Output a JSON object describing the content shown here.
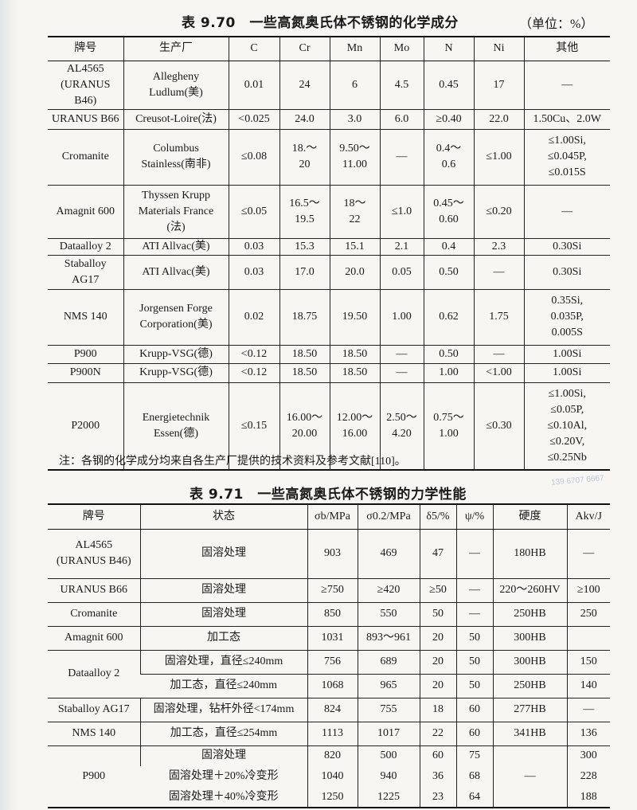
{
  "table1": {
    "title": "表 9.70　一些高氮奥氏体不锈钢的化学成分",
    "unit": "（单位：%）",
    "columns": [
      "牌号",
      "生产厂",
      "C",
      "Cr",
      "Mn",
      "Mo",
      "N",
      "Ni",
      "其他"
    ],
    "rows": [
      [
        "AL4565\n(URANUS B46)",
        "Allegheny\nLudlum(美)",
        "0.01",
        "24",
        "6",
        "4.5",
        "0.45",
        "17",
        "—"
      ],
      [
        "URANUS B66",
        "Creusot-Loire(法)",
        "<0.025",
        "24.0",
        "3.0",
        "6.0",
        "≥0.40",
        "22.0",
        "1.50Cu、2.0W"
      ],
      [
        "Cromanite",
        "Columbus\nStainless(南非)",
        "≤0.08",
        "18.～\n20",
        "9.50～\n11.00",
        "—",
        "0.4～\n0.6",
        "≤1.00",
        "≤1.00Si,\n≤0.045P,\n≤0.015S"
      ],
      [
        "Amagnit 600",
        "Thyssen Krupp\nMaterials France\n(法)",
        "≤0.05",
        "16.5～\n19.5",
        "18～\n22",
        "≤1.0",
        "0.45～\n0.60",
        "≤0.20",
        "—"
      ],
      [
        "Dataalloy 2",
        "ATI Allvac(美)",
        "0.03",
        "15.3",
        "15.1",
        "2.1",
        "0.4",
        "2.3",
        "0.30Si"
      ],
      [
        "Staballoy\nAG17",
        "ATI Allvac(美)",
        "0.03",
        "17.0",
        "20.0",
        "0.05",
        "0.50",
        "—",
        "0.30Si"
      ],
      [
        "NMS 140",
        "Jorgensen Forge\nCorporation(美)",
        "0.02",
        "18.75",
        "19.50",
        "1.00",
        "0.62",
        "1.75",
        "0.35Si,\n0.035P,\n0.005S"
      ],
      [
        "P900",
        "Krupp-VSG(德)",
        "<0.12",
        "18.50",
        "18.50",
        "—",
        "0.50",
        "—",
        "1.00Si"
      ],
      [
        "P900N",
        "Krupp-VSG(德)",
        "<0.12",
        "18.50",
        "18.50",
        "—",
        "1.00",
        "<1.00",
        "1.00Si"
      ],
      [
        "P2000",
        "Energietechnik\nEssen(德)",
        "≤0.15",
        "16.00～\n20.00",
        "12.00～\n16.00",
        "2.50～\n4.20",
        "0.75～\n1.00",
        "≤0.30",
        "≤1.00Si,\n≤0.05P,\n≤0.10Al,\n≤0.20V,\n≤0.25Nb"
      ]
    ],
    "note": "注：各钢的化学成分均来自各生产厂提供的技术资料及参考文献[110]。"
  },
  "table2": {
    "title": "表 9.71　一些高氮奥氏体不锈钢的力学性能",
    "columns": [
      "牌号",
      "状态",
      "σb/MPa",
      "σ0.2/MPa",
      "δ5/%",
      "ψ/%",
      "硬度",
      "Akv/J"
    ],
    "groups": [
      {
        "grade": "AL4565\n(URANUS B46)",
        "rows": [
          [
            "固溶处理",
            "903",
            "469",
            "47",
            "—",
            "180HB",
            "—"
          ]
        ]
      },
      {
        "grade": "URANUS B66",
        "rows": [
          [
            "固溶处理",
            "≥750",
            "≥420",
            "≥50",
            "—",
            "220～260HV",
            "≥100"
          ]
        ]
      },
      {
        "grade": "Cromanite",
        "rows": [
          [
            "固溶处理",
            "850",
            "550",
            "50",
            "—",
            "250HB",
            "250"
          ]
        ]
      },
      {
        "grade": "Amagnit 600",
        "rows": [
          [
            "加工态",
            "1031",
            "893～961",
            "20",
            "50",
            "300HB",
            ""
          ]
        ]
      },
      {
        "grade": "Dataalloy 2",
        "rows": [
          [
            "固溶处理，直径≤240mm",
            "756",
            "689",
            "20",
            "50",
            "300HB",
            "150"
          ],
          [
            "加工态，直径≤240mm",
            "1068",
            "965",
            "20",
            "50",
            "250HB",
            "140"
          ]
        ]
      },
      {
        "grade": "Staballoy AG17",
        "rows": [
          [
            "固溶处理，钻杆外径<174mm",
            "824",
            "755",
            "18",
            "60",
            "277HB",
            "—"
          ]
        ]
      },
      {
        "grade": "NMS 140",
        "rows": [
          [
            "加工态，直径≤254mm",
            "1113",
            "1017",
            "22",
            "60",
            "341HB",
            "136"
          ]
        ]
      },
      {
        "grade": "P900",
        "merged_hardness": "—",
        "rows": [
          [
            "固溶处理",
            "820",
            "500",
            "60",
            "75",
            "",
            "300"
          ],
          [
            "固溶处理＋20%冷变形",
            "1040",
            "940",
            "36",
            "68",
            "",
            "228"
          ],
          [
            "固溶处理＋40%冷变形",
            "1250",
            "1225",
            "23",
            "64",
            "",
            "188"
          ]
        ]
      }
    ]
  },
  "watermark": "139 6707 6667"
}
